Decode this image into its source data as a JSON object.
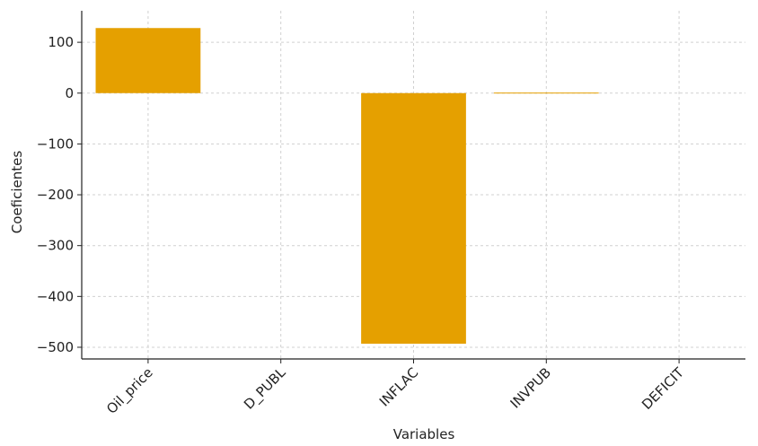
{
  "chart_data": {
    "type": "bar",
    "title": "",
    "xlabel": "Variables",
    "ylabel": "Coeficientes",
    "categories": [
      "Oil_price",
      "D_PUBL",
      "INFLAC",
      "INVPUB",
      "DEFICIT"
    ],
    "values": [
      128,
      0,
      -493,
      1,
      0
    ],
    "yticks": [
      100,
      0,
      -100,
      -200,
      -300,
      -400,
      -500
    ],
    "ytick_labels": [
      "100",
      "0",
      "−100",
      "−200",
      "−300",
      "−400",
      "−500"
    ],
    "ylim": [
      -523,
      162
    ],
    "grid": true,
    "legend": "none",
    "colors": {
      "bar": "#e5a000",
      "grid": "#d0d0d0",
      "axis": "#222222"
    }
  }
}
